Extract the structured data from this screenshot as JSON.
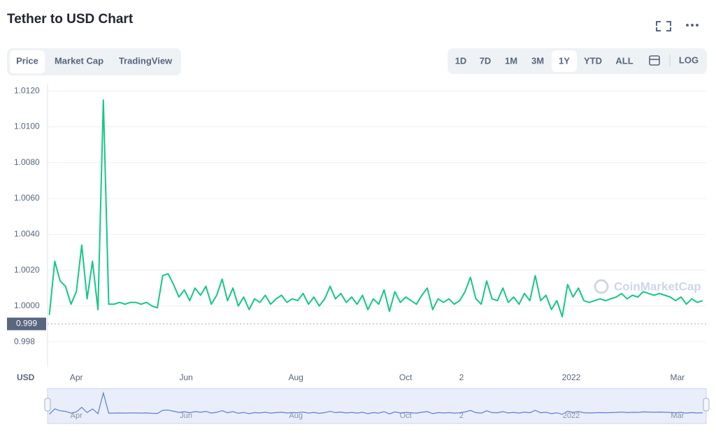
{
  "header": {
    "title": "Tether to USD Chart"
  },
  "tabs": [
    {
      "label": "Price",
      "selected": true
    },
    {
      "label": "Market Cap",
      "selected": false
    },
    {
      "label": "TradingView",
      "selected": false
    }
  ],
  "ranges": [
    {
      "label": "1D",
      "selected": false
    },
    {
      "label": "7D",
      "selected": false
    },
    {
      "label": "1M",
      "selected": false
    },
    {
      "label": "3M",
      "selected": false
    },
    {
      "label": "1Y",
      "selected": true
    },
    {
      "label": "YTD",
      "selected": false
    },
    {
      "label": "ALL",
      "selected": false
    }
  ],
  "log_label": "LOG",
  "chart_data": {
    "type": "line",
    "color": "#16c784",
    "navigator_color": "#5b7fd6",
    "unit_label": "USD",
    "current_price": 0.999,
    "watermark": "CoinMarketCap",
    "grid": true,
    "xlim": [
      0,
      366
    ],
    "ylim": [
      0.9966,
      1.0124
    ],
    "xticks": [
      {
        "value": 16,
        "label": "Apr"
      },
      {
        "value": 77,
        "label": "Jun"
      },
      {
        "value": 138,
        "label": "Aug"
      },
      {
        "value": 199,
        "label": "Oct"
      },
      {
        "value": 230,
        "label": "2"
      },
      {
        "value": 291,
        "label": "2022"
      },
      {
        "value": 350,
        "label": "Mar"
      }
    ],
    "yticks": [
      0.998,
      {
        "value": 1.0,
        "label": "1.0000"
      },
      {
        "value": 1.002,
        "label": "1.0020"
      },
      {
        "value": 1.004,
        "label": "1.0040"
      },
      {
        "value": 1.006,
        "label": "1.0060"
      },
      {
        "value": 1.008,
        "label": "1.0080"
      },
      {
        "value": 1.01,
        "label": "1.0100"
      },
      {
        "value": 1.012,
        "label": "1.0120"
      }
    ],
    "x": [
      1,
      4,
      7,
      10,
      13,
      16,
      19,
      22,
      25,
      28,
      31,
      34,
      37,
      40,
      43,
      46,
      49,
      52,
      55,
      58,
      61,
      64,
      67,
      70,
      73,
      76,
      79,
      82,
      85,
      88,
      91,
      94,
      97,
      100,
      103,
      106,
      109,
      112,
      115,
      118,
      121,
      124,
      127,
      130,
      133,
      136,
      139,
      142,
      145,
      148,
      151,
      154,
      157,
      160,
      163,
      166,
      169,
      172,
      175,
      178,
      181,
      184,
      187,
      190,
      193,
      196,
      199,
      202,
      205,
      208,
      211,
      214,
      217,
      220,
      223,
      226,
      229,
      232,
      235,
      238,
      241,
      244,
      247,
      250,
      253,
      256,
      259,
      262,
      265,
      268,
      271,
      274,
      277,
      280,
      283,
      286,
      289,
      292,
      295,
      298,
      301,
      304,
      307,
      310,
      313,
      316,
      319,
      322,
      325,
      328,
      331,
      334,
      337,
      340,
      343,
      346,
      349,
      352,
      355,
      358,
      361,
      364
    ],
    "values": [
      0.9995,
      1.0025,
      1.0014,
      1.0011,
      1.0001,
      1.0008,
      1.0034,
      1.0004,
      1.0025,
      0.9998,
      1.0115,
      1.0001,
      1.0001,
      1.0002,
      1.0001,
      1.0002,
      1.0002,
      1.0001,
      1.0002,
      1.0,
      0.9999,
      1.0017,
      1.0018,
      1.0012,
      1.0005,
      1.0009,
      1.0003,
      1.001,
      1.0006,
      1.0011,
      1.0001,
      1.0006,
      1.0015,
      1.0003,
      1.001,
      1.0,
      1.0005,
      0.9998,
      1.0004,
      1.0002,
      1.0006,
      1.0001,
      1.0004,
      1.0006,
      1.0002,
      1.0004,
      1.0003,
      1.0007,
      1.0001,
      1.0005,
      1.0,
      1.0004,
      1.0011,
      1.0004,
      1.0007,
      1.0002,
      1.0005,
      1.0001,
      1.0006,
      0.9998,
      1.0004,
      1.0001,
      1.0009,
      0.9997,
      1.0008,
      1.0002,
      1.0005,
      1.0003,
      1.0001,
      1.0006,
      1.001,
      0.9998,
      1.0004,
      1.0002,
      1.0004,
      1.0001,
      1.0003,
      1.0008,
      1.0016,
      1.0004,
      1.0001,
      1.0014,
      1.0004,
      1.0003,
      1.001,
      1.0002,
      1.0005,
      1.0001,
      1.0007,
      1.0003,
      1.0017,
      1.0003,
      1.0006,
      0.9998,
      1.0003,
      0.9994,
      1.0012,
      1.0005,
      1.001,
      1.0003,
      1.0002,
      1.0003,
      1.0004,
      1.0003,
      1.0004,
      1.0005,
      1.0007,
      1.0004,
      1.0006,
      1.0005,
      1.0008,
      1.0007,
      1.0006,
      1.0007,
      1.0006,
      1.0005,
      1.0003,
      1.0005,
      1.0001,
      1.0004,
      1.0002,
      1.0003
    ]
  }
}
